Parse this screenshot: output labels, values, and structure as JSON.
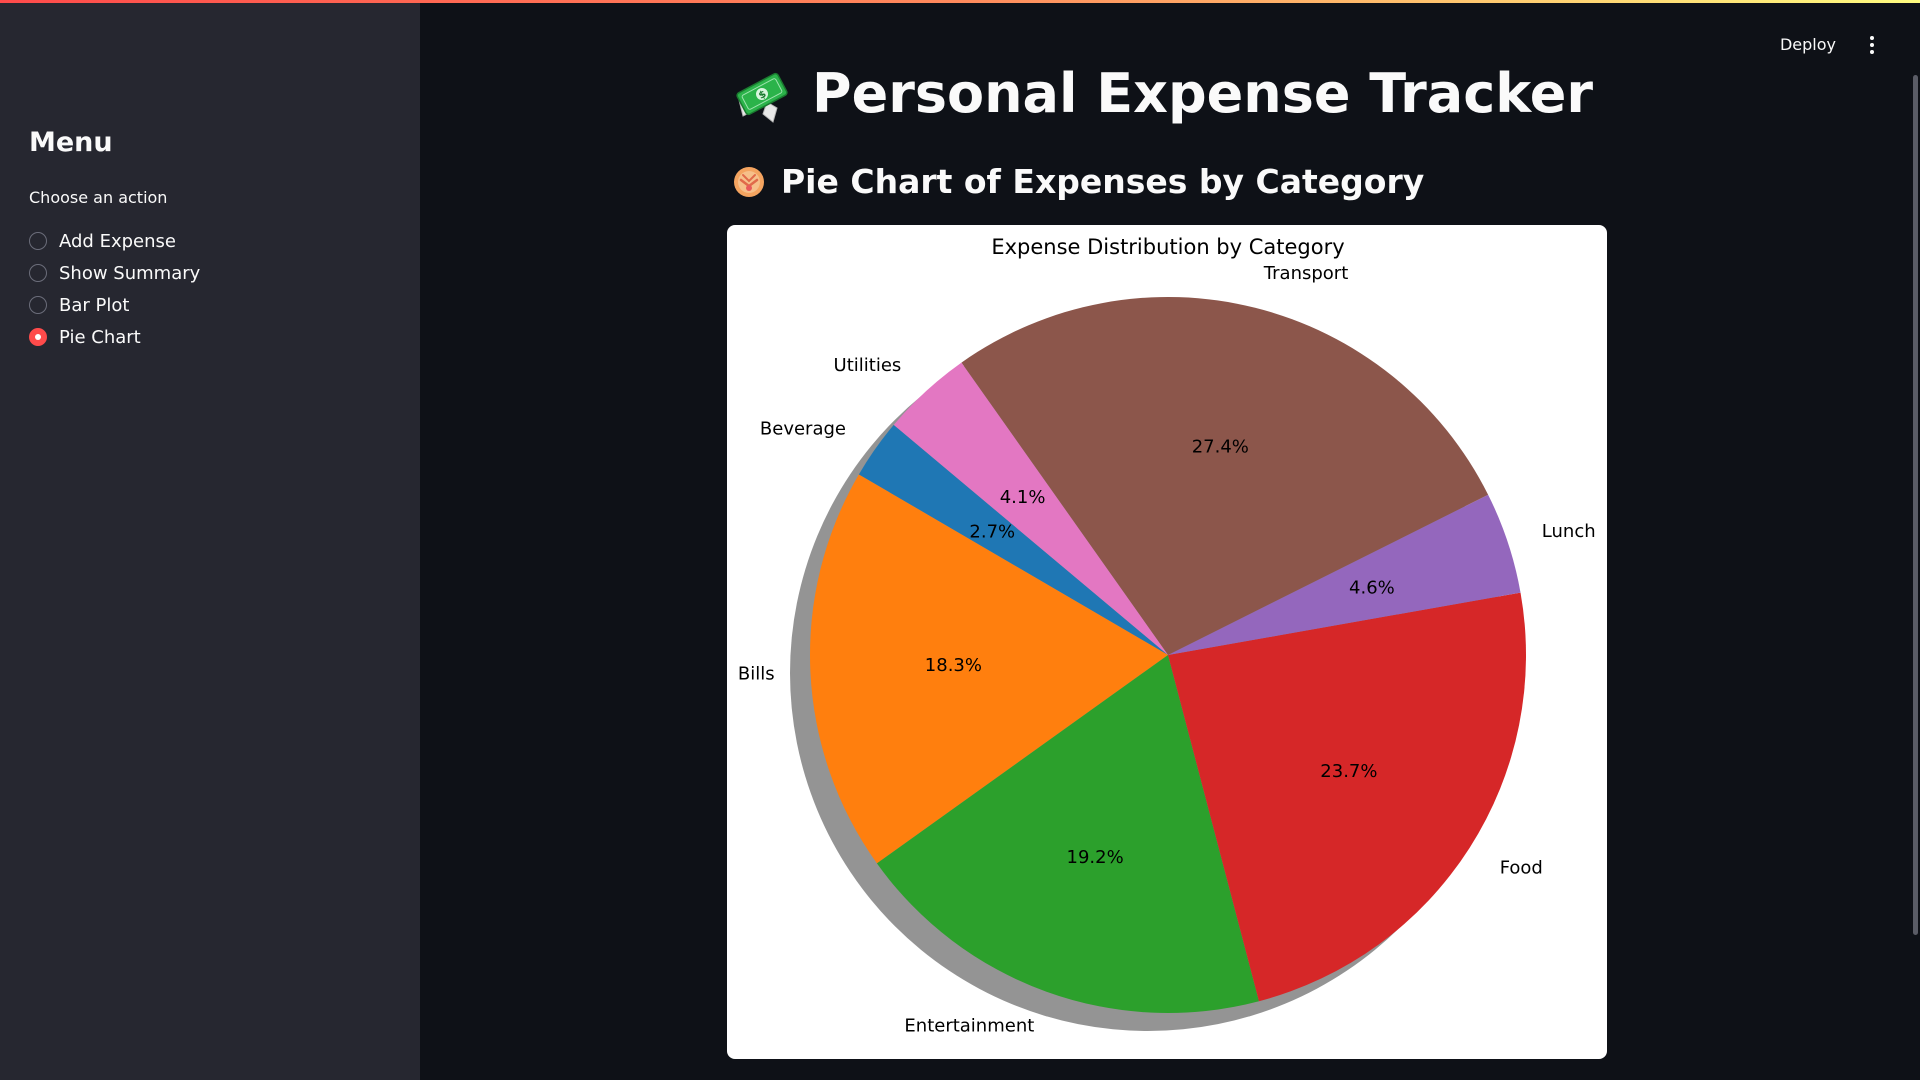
{
  "sidebar": {
    "title": "Menu",
    "radio_label": "Choose an action",
    "options": [
      {
        "label": "Add Expense",
        "selected": false
      },
      {
        "label": "Show Summary",
        "selected": false
      },
      {
        "label": "Bar Plot",
        "selected": false
      },
      {
        "label": "Pie Chart",
        "selected": true
      }
    ]
  },
  "header": {
    "deploy_label": "Deploy",
    "menu_icon": "kebab-menu-icon"
  },
  "main": {
    "title": "Personal Expense Tracker",
    "title_icon": "money-with-wings-icon",
    "subtitle": "Pie Chart of Expenses by Category",
    "subtitle_icon": "pie-icon"
  },
  "chart_data": {
    "type": "pie",
    "title": "Expense Distribution by Category",
    "shadow": true,
    "start_angle_deg": 140,
    "direction": "counterclockwise",
    "slices": [
      {
        "label": "Beverage",
        "value": 2.7,
        "pct_label": "2.7%",
        "color": "#1f77b4"
      },
      {
        "label": "Bills",
        "value": 18.3,
        "pct_label": "18.3%",
        "color": "#ff7f0e"
      },
      {
        "label": "Entertainment",
        "value": 19.2,
        "pct_label": "19.2%",
        "color": "#2ca02c"
      },
      {
        "label": "Food",
        "value": 23.7,
        "pct_label": "23.7%",
        "color": "#d62728"
      },
      {
        "label": "Lunch",
        "value": 4.6,
        "pct_label": "4.6%",
        "color": "#9467bd"
      },
      {
        "label": "Transport",
        "value": 27.4,
        "pct_label": "27.4%",
        "color": "#8c564b"
      },
      {
        "label": "Utilities",
        "value": 4.1,
        "pct_label": "4.1%",
        "color": "#e377c2"
      }
    ]
  }
}
